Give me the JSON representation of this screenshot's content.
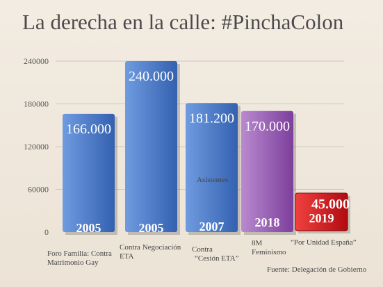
{
  "title": "La derecha en la calle: #PinchaColon",
  "source": "Fuente: Delegación de Gobierno",
  "chart_data": {
    "type": "bar",
    "title": "La derecha en la calle: #PinchaColon",
    "ylim": [
      0,
      240000
    ],
    "yticks": [
      "0",
      "60000",
      "120000",
      "180000",
      "240000"
    ],
    "ytick_values": [
      0,
      60000,
      120000,
      180000,
      240000
    ],
    "grid": true,
    "bars": [
      {
        "value": 166000,
        "value_label": "166.000",
        "year": "2005",
        "category": [
          "Foro Familia: Contra",
          "Matrimonio Gay"
        ],
        "color": "#3f73c7"
      },
      {
        "value": 240000,
        "value_label": "240.000",
        "year": "2005",
        "category": [
          "Contra Negociación",
          "ETA"
        ],
        "color": "#3f73c7"
      },
      {
        "value": 181200,
        "value_label": "181.200",
        "year": "2007",
        "category": [
          "Asistentes",
          "Contra",
          "“Cesión ETA”"
        ],
        "color": "#3f73c7"
      },
      {
        "value": 170000,
        "value_label": "170.000",
        "year": "2018",
        "category": [
          "8M",
          "Feminismo"
        ],
        "color": "#9b55b8"
      },
      {
        "value": 45000,
        "value_label": "45.000",
        "year": "2019",
        "category": [
          "“Por Unidad España”"
        ],
        "color": "#d9161b"
      }
    ]
  }
}
